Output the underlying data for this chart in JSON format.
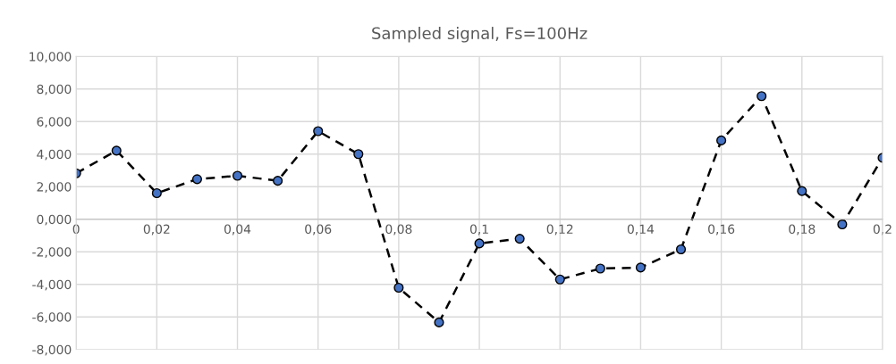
{
  "chart_data": {
    "type": "line",
    "title": "Sampled signal, Fs=100Hz",
    "x": [
      0,
      0.01,
      0.02,
      0.03,
      0.04,
      0.05,
      0.06,
      0.07,
      0.08,
      0.09,
      0.1,
      0.11,
      0.12,
      0.13,
      0.14,
      0.15,
      0.16,
      0.17,
      0.18,
      0.19,
      0.2
    ],
    "series": [
      {
        "color": "#4472c4",
        "values": [
          2.82,
          4.21,
          1.6,
          2.46,
          2.67,
          2.36,
          5.41,
          4.0,
          -4.21,
          -6.34,
          -1.49,
          -1.2,
          -3.7,
          -3.03,
          -2.97,
          -1.85,
          4.84,
          7.56,
          1.73,
          -0.32,
          3.77
        ]
      }
    ],
    "xlim": [
      0,
      0.2
    ],
    "xticks": [
      0,
      {
        "value": 0.02,
        "label": "0,02"
      },
      {
        "value": 0.04,
        "label": "0,04"
      },
      {
        "value": 0.06,
        "label": "0,06"
      },
      {
        "value": 0.08,
        "label": "0,08"
      },
      {
        "value": 0.1,
        "label": "0,1"
      },
      {
        "value": 0.12,
        "label": "0,12"
      },
      {
        "value": 0.14,
        "label": "0,14"
      },
      {
        "value": 0.16,
        "label": "0,16"
      },
      {
        "value": 0.18,
        "label": "0,18"
      },
      {
        "value": 0.2,
        "label": "0,2"
      }
    ],
    "ylim": [
      -8,
      10
    ],
    "yticks": [
      {
        "value": -8,
        "label": "-8,000"
      },
      {
        "value": -6,
        "label": "-6,000"
      },
      {
        "value": -4,
        "label": "-4,000"
      },
      {
        "value": -2,
        "label": "-2,000"
      },
      {
        "value": 0,
        "label": "0,000"
      },
      {
        "value": 2,
        "label": "2,000"
      },
      {
        "value": 4,
        "label": "4,000"
      },
      {
        "value": 6,
        "label": "6,000"
      },
      {
        "value": 8,
        "label": "8,000"
      },
      {
        "value": 10,
        "label": "10,000"
      }
    ],
    "grid": true,
    "marker": "circle",
    "line_style": "dashed"
  }
}
